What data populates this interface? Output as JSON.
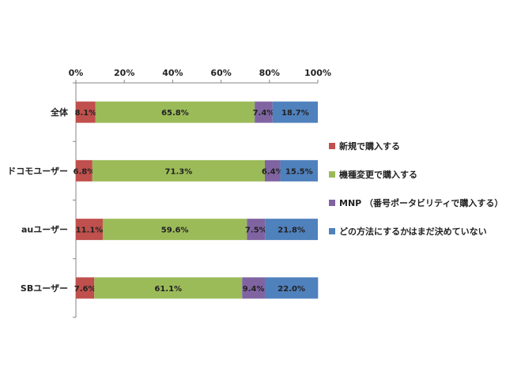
{
  "chart_data": {
    "type": "bar",
    "orientation": "horizontal",
    "stacked": true,
    "percent": true,
    "xlim": [
      0,
      100
    ],
    "xticks": [
      "0%",
      "20%",
      "40%",
      "60%",
      "80%",
      "100%"
    ],
    "categories": [
      "全体",
      "ドコモユーザー",
      "auユーザー",
      "SBユーザー"
    ],
    "series": [
      {
        "name": "新規で購入する",
        "color": "#C0504D",
        "values": [
          8.1,
          6.8,
          11.1,
          7.6
        ],
        "labels": [
          "8.1%",
          "6.8%",
          "11.1%",
          "7.6%"
        ]
      },
      {
        "name": "機種変更で購入する",
        "color": "#9BBB59",
        "values": [
          65.8,
          71.3,
          59.6,
          61.1
        ],
        "labels": [
          "65.8%",
          "71.3%",
          "59.6%",
          "61.1%"
        ]
      },
      {
        "name": "MNP （番号ポータビリティで購入する）",
        "color": "#8064A2",
        "values": [
          7.4,
          6.4,
          7.5,
          9.4
        ],
        "labels": [
          "7.4%",
          "6.4%",
          "7.5%",
          "9.4%"
        ]
      },
      {
        "name": "どの方法にするかはまだ決めていない",
        "color": "#4F81BD",
        "values": [
          18.7,
          15.5,
          21.8,
          22.0
        ],
        "labels": [
          "18.7%",
          "15.5%",
          "21.8%",
          "22.0%"
        ]
      }
    ],
    "legend_position": "right",
    "grid": false
  }
}
